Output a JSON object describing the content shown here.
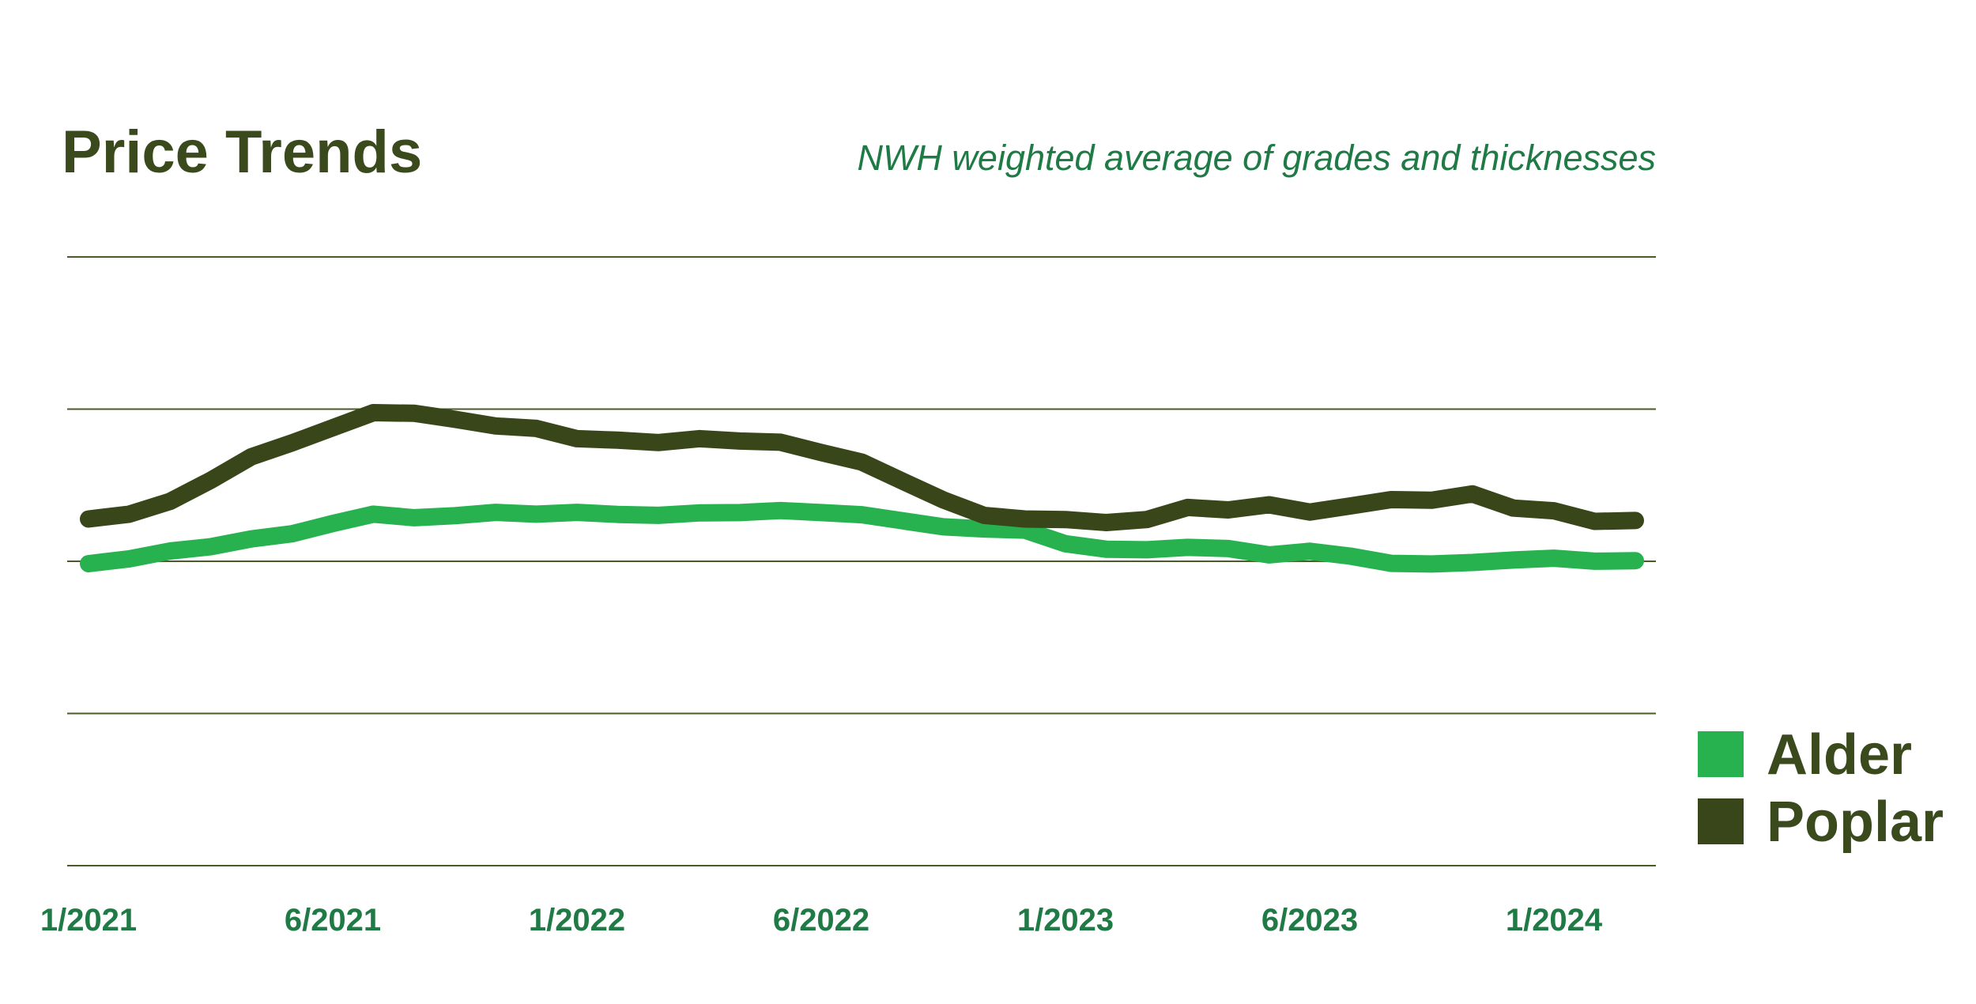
{
  "chart_data": {
    "type": "line",
    "title": "Price Trends",
    "subtitle": "NWH weighted average of grades and thicknesses",
    "x_tick_labels": [
      "1/2021",
      "6/2021",
      "1/2022",
      "6/2022",
      "1/2023",
      "6/2023",
      "1/2024"
    ],
    "x_tick_positions": [
      0,
      6,
      12,
      18,
      24,
      30,
      36
    ],
    "x_range": [
      0,
      38.5
    ],
    "y_gridline_count": 5,
    "y_axis_labels": false,
    "grid": true,
    "legend_position": "bottom-right",
    "colors": {
      "text_dark": "#3a4a1c",
      "text_green": "#1f7a45",
      "grid": "#4a5a28"
    },
    "series": [
      {
        "name": "Alder",
        "color": "#27b24f",
        "x": [
          0,
          1,
          2,
          3,
          4,
          5,
          6,
          7,
          8,
          9,
          10,
          11,
          12,
          13,
          14,
          15,
          16,
          17,
          18,
          19,
          20,
          21,
          22,
          23,
          24,
          25,
          26,
          27,
          28,
          29,
          30,
          31,
          32,
          33,
          34,
          35,
          36,
          37,
          38
        ],
        "values": [
          0,
          1.6,
          4.2,
          5.6,
          8.2,
          9.9,
          13.3,
          16.4,
          15.2,
          15.9,
          17.0,
          16.4,
          17.0,
          16.3,
          16.0,
          16.8,
          16.9,
          17.6,
          16.9,
          16.2,
          14.2,
          12.2,
          11.5,
          11.1,
          6.6,
          4.8,
          4.6,
          5.4,
          5.0,
          2.9,
          4.1,
          2.5,
          0.1,
          -0.1,
          0.4,
          1.2,
          1.8,
          0.8,
          1.0
        ]
      },
      {
        "name": "Poplar",
        "color": "#384619",
        "x": [
          0,
          1,
          2,
          3,
          4,
          5,
          6,
          7,
          8,
          9,
          10,
          11,
          12,
          13,
          14,
          15,
          16,
          17,
          18,
          19,
          20,
          21,
          22,
          23,
          24,
          25,
          26,
          27,
          28,
          29,
          30,
          31,
          32,
          33,
          34,
          35,
          36,
          37,
          38
        ],
        "values": [
          14.8,
          16.4,
          20.6,
          27.6,
          35.4,
          40.0,
          45.0,
          50.0,
          49.8,
          47.8,
          45.6,
          44.8,
          41.4,
          40.9,
          40.1,
          41.4,
          40.6,
          40.2,
          36.8,
          33.6,
          27.3,
          21.1,
          16.0,
          14.8,
          14.6,
          13.6,
          14.6,
          18.6,
          17.8,
          19.5,
          17.1,
          19.1,
          21.2,
          21.0,
          23.1,
          18.4,
          17.5,
          14.0,
          14.3
        ]
      }
    ]
  }
}
